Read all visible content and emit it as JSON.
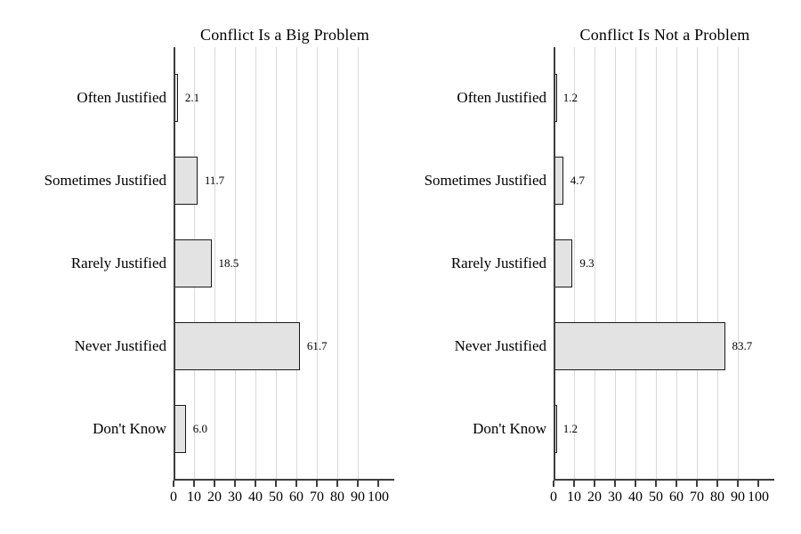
{
  "figure": {
    "background": "#ffffff",
    "text_color": "#000000",
    "axis_color": "#3d3d3d",
    "gridline_color": "#d9d9d9",
    "bar_fill": "#e3e3e3",
    "bar_border": "#1a1a1a"
  },
  "chart_data": [
    {
      "type": "bar",
      "orientation": "horizontal",
      "title": "Conflict Is a Big Problem",
      "categories": [
        "Often Justified",
        "Sometimes Justified",
        "Rarely Justified",
        "Never Justified",
        "Don't Know"
      ],
      "values": [
        2.1,
        11.7,
        18.5,
        61.7,
        6.0
      ],
      "value_labels": [
        "2.1",
        "11.7",
        "18.5",
        "61.7",
        "6.0"
      ],
      "xlim": [
        0,
        100
      ],
      "x_ticks": [
        "0",
        "10",
        "20",
        "30",
        "40",
        "50",
        "60",
        "70",
        "80",
        "90",
        "100"
      ],
      "gridlines_at": [
        10,
        20,
        30,
        40,
        50,
        60,
        70,
        80,
        90
      ],
      "grid": "vertical-on",
      "legend": "none",
      "xlabel": "",
      "ylabel": ""
    },
    {
      "type": "bar",
      "orientation": "horizontal",
      "title": "Conflict Is Not a Problem",
      "categories": [
        "Often Justified",
        "Sometimes Justified",
        "Rarely Justified",
        "Never Justified",
        "Don't Know"
      ],
      "values": [
        1.2,
        4.7,
        9.3,
        83.7,
        1.2
      ],
      "value_labels": [
        "1.2",
        "4.7",
        "9.3",
        "83.7",
        "1.2"
      ],
      "xlim": [
        0,
        100
      ],
      "x_ticks": [
        "0",
        "10",
        "20",
        "30",
        "40",
        "50",
        "60",
        "70",
        "80",
        "90",
        "100"
      ],
      "gridlines_at": [
        10,
        20,
        30,
        40,
        50,
        60,
        70,
        80,
        90
      ],
      "grid": "vertical-on",
      "legend": "none",
      "xlabel": "",
      "ylabel": ""
    }
  ]
}
